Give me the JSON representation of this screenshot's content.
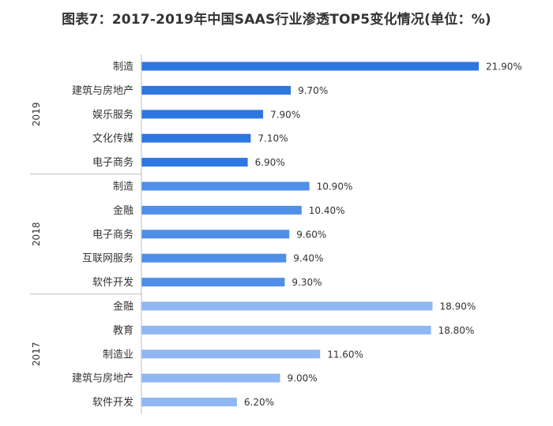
{
  "title": "图表7：2017-2019年中国SAAS行业渗透TOP5变化情况(单位：%)",
  "colors": {
    "2019": "#2e77e0",
    "2018": "#4f8fe8",
    "2017": "#8fb7f2"
  },
  "chart_data": {
    "type": "bar",
    "orientation": "horizontal",
    "title": "图表7：2017-2019年中国SAAS行业渗透TOP5变化情况(单位：%)",
    "unit": "%",
    "xlim": [
      0,
      22
    ],
    "grid": false,
    "groups": [
      {
        "name": "2019",
        "categories": [
          "制造",
          "建筑与房地产",
          "娱乐服务",
          "文化传媒",
          "电子商务"
        ],
        "values": [
          21.9,
          9.7,
          7.9,
          7.1,
          6.9
        ],
        "labels": [
          "21.90%",
          "9.70%",
          "7.90%",
          "7.10%",
          "6.90%"
        ]
      },
      {
        "name": "2018",
        "categories": [
          "制造",
          "金融",
          "电子商务",
          "互联网服务",
          "软件开发"
        ],
        "values": [
          10.9,
          10.4,
          9.6,
          9.4,
          9.3
        ],
        "labels": [
          "10.90%",
          "10.40%",
          "9.60%",
          "9.40%",
          "9.30%"
        ]
      },
      {
        "name": "2017",
        "categories": [
          "金融",
          "教育",
          "制造业",
          "建筑与房地产",
          "软件开发"
        ],
        "values": [
          18.9,
          18.8,
          11.6,
          9.0,
          6.2
        ],
        "labels": [
          "18.90%",
          "18.80%",
          "11.60%",
          "9.00%",
          "6.20%"
        ]
      }
    ]
  }
}
